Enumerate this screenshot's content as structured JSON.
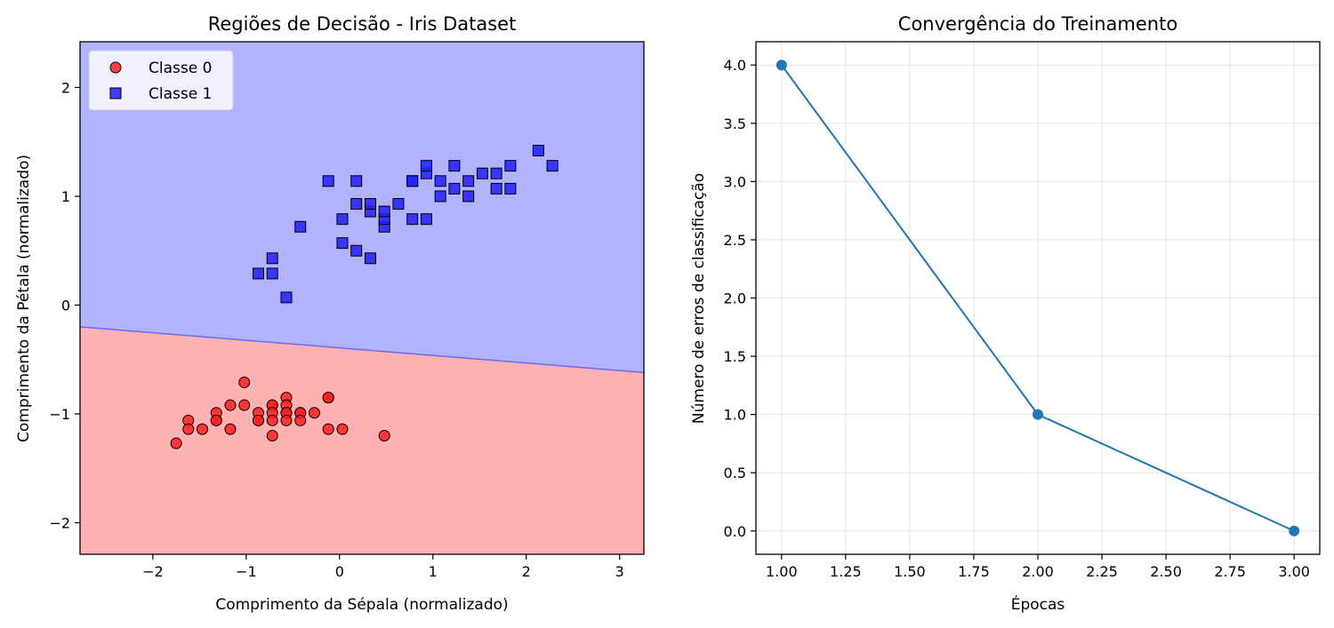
{
  "chart_data": [
    {
      "type": "scatter",
      "title": "Regiões de Decisão - Iris Dataset",
      "xlabel": "Comprimento da Sépala (normalizado)",
      "ylabel": "Comprimento da Pétala (normalizado)",
      "xlim": [
        -2.78,
        3.26
      ],
      "ylim": [
        -2.29,
        2.42
      ],
      "xticks": [
        -2,
        -1,
        0,
        1,
        2,
        3
      ],
      "yticks": [
        -2,
        -1,
        0,
        1,
        2
      ],
      "grid": false,
      "legend_position": "top-left",
      "decision_regions": {
        "boundary": [
          [
            -2.78,
            -0.2
          ],
          [
            3.26,
            -0.62
          ]
        ],
        "colors": {
          "class_0": "#ffb2b2",
          "class_1": "#b2b2ff",
          "boundary": "#6a6aff"
        }
      },
      "series": [
        {
          "name": "Classe 0",
          "marker": "circle",
          "color": "#ff2020",
          "points": [
            [
              -1.75,
              -1.27
            ],
            [
              -1.62,
              -1.06
            ],
            [
              -1.62,
              -1.14
            ],
            [
              -1.47,
              -1.14
            ],
            [
              -1.32,
              -0.99
            ],
            [
              -1.32,
              -1.06
            ],
            [
              -1.32,
              -1.06
            ],
            [
              -1.17,
              -0.92
            ],
            [
              -1.17,
              -1.14
            ],
            [
              -1.02,
              -0.71
            ],
            [
              -1.02,
              -0.92
            ],
            [
              -0.87,
              -0.99
            ],
            [
              -0.87,
              -1.06
            ],
            [
              -0.87,
              -1.06
            ],
            [
              -0.72,
              -0.92
            ],
            [
              -0.72,
              -0.92
            ],
            [
              -0.72,
              -0.99
            ],
            [
              -0.72,
              -1.06
            ],
            [
              -0.72,
              -1.2
            ],
            [
              -0.57,
              -0.85
            ],
            [
              -0.57,
              -0.92
            ],
            [
              -0.57,
              -0.99
            ],
            [
              -0.57,
              -0.99
            ],
            [
              -0.57,
              -1.06
            ],
            [
              -0.42,
              -0.99
            ],
            [
              -0.42,
              -0.99
            ],
            [
              -0.42,
              -1.06
            ],
            [
              -0.27,
              -0.99
            ],
            [
              -0.12,
              -0.85
            ],
            [
              -0.12,
              -0.85
            ],
            [
              -0.12,
              -1.14
            ],
            [
              0.03,
              -1.14
            ],
            [
              0.48,
              -1.2
            ]
          ]
        },
        {
          "name": "Classe 1",
          "marker": "square",
          "color": "#2020ff",
          "points": [
            [
              -0.87,
              0.29
            ],
            [
              -0.72,
              0.29
            ],
            [
              -0.72,
              0.43
            ],
            [
              -0.57,
              0.07
            ],
            [
              -0.42,
              0.72
            ],
            [
              -0.12,
              1.14
            ],
            [
              0.03,
              0.57
            ],
            [
              0.03,
              0.79
            ],
            [
              0.18,
              0.5
            ],
            [
              0.18,
              0.93
            ],
            [
              0.18,
              1.14
            ],
            [
              0.33,
              0.43
            ],
            [
              0.33,
              0.86
            ],
            [
              0.33,
              0.93
            ],
            [
              0.48,
              0.72
            ],
            [
              0.48,
              0.79
            ],
            [
              0.48,
              0.86
            ],
            [
              0.63,
              0.93
            ],
            [
              0.78,
              0.79
            ],
            [
              0.78,
              1.14
            ],
            [
              0.78,
              1.14
            ],
            [
              0.93,
              0.79
            ],
            [
              0.93,
              1.21
            ],
            [
              0.93,
              1.28
            ],
            [
              1.08,
              1.0
            ],
            [
              1.08,
              1.14
            ],
            [
              1.23,
              1.07
            ],
            [
              1.23,
              1.28
            ],
            [
              1.38,
              1.0
            ],
            [
              1.38,
              1.14
            ],
            [
              1.53,
              1.21
            ],
            [
              1.68,
              1.07
            ],
            [
              1.68,
              1.21
            ],
            [
              1.83,
              1.07
            ],
            [
              1.83,
              1.28
            ],
            [
              2.13,
              1.42
            ],
            [
              2.28,
              1.28
            ]
          ]
        }
      ]
    },
    {
      "type": "line",
      "title": "Convergência do Treinamento",
      "xlabel": "Épocas",
      "ylabel": "Número de erros de classificação",
      "xlim": [
        0.9,
        3.1
      ],
      "ylim": [
        -0.2,
        4.2
      ],
      "xticks": [
        "1.00",
        "1.25",
        "1.50",
        "1.75",
        "2.00",
        "2.25",
        "2.50",
        "2.75",
        "3.00"
      ],
      "yticks": [
        "0.0",
        "0.5",
        "1.0",
        "1.5",
        "2.0",
        "2.5",
        "3.0",
        "3.5",
        "4.0"
      ],
      "grid": true,
      "color": "#1f77b4",
      "x": [
        1,
        2,
        3
      ],
      "y": [
        4,
        1,
        0
      ]
    }
  ]
}
